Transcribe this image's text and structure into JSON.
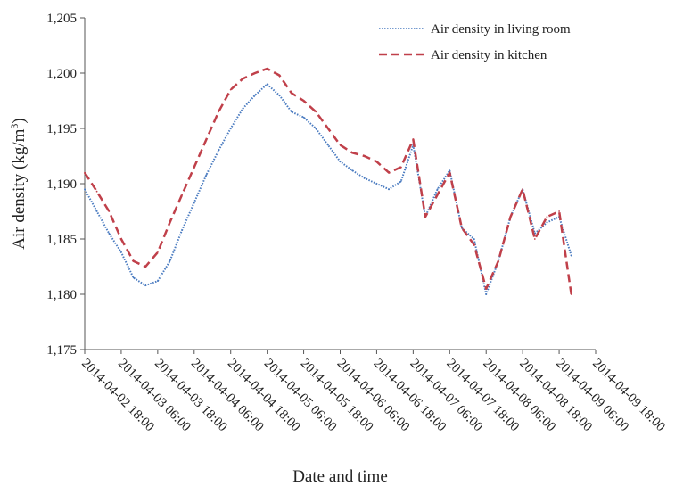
{
  "chart_data": {
    "type": "line",
    "xlabel": "Date and time",
    "ylabel": "Air density (kg/m",
    "ylabel_sup": "3",
    "ylabel_close": ")",
    "ylim": [
      1.175,
      1.205
    ],
    "yticks": [
      {
        "value": 1.175,
        "label": "1,175"
      },
      {
        "value": 1.18,
        "label": "1,180"
      },
      {
        "value": 1.185,
        "label": "1,185"
      },
      {
        "value": 1.19,
        "label": "1,190"
      },
      {
        "value": 1.195,
        "label": "1,195"
      },
      {
        "value": 1.2,
        "label": "1,200"
      },
      {
        "value": 1.205,
        "label": "1,205"
      }
    ],
    "xlim": [
      "2014-04-02 18:00",
      "2014-04-09 18:00"
    ],
    "xticks": [
      "2014-04-02 18:00",
      "2014-04-03 06:00",
      "2014-04-03 18:00",
      "2014-04-04 06:00",
      "2014-04-04 18:00",
      "2014-04-05 06:00",
      "2014-04-05 18:00",
      "2014-04-06 06:00",
      "2014-04-06 18:00",
      "2014-04-07 06:00",
      "2014-04-07 18:00",
      "2014-04-08 06:00",
      "2014-04-08 18:00",
      "2014-04-09 06:00",
      "2014-04-09 18:00"
    ],
    "grid": false,
    "legend_position": "top-right",
    "series": [
      {
        "name": "Air density in living room",
        "color": "#4a7bc0",
        "style": "dotted",
        "points": [
          [
            "2014-04-02 18:00",
            1.1895
          ],
          [
            "2014-04-02 22:00",
            1.1875
          ],
          [
            "2014-04-03 02:00",
            1.1855
          ],
          [
            "2014-04-03 06:00",
            1.1838
          ],
          [
            "2014-04-03 10:00",
            1.1815
          ],
          [
            "2014-04-03 14:00",
            1.1808
          ],
          [
            "2014-04-03 18:00",
            1.1812
          ],
          [
            "2014-04-03 22:00",
            1.183
          ],
          [
            "2014-04-04 02:00",
            1.1858
          ],
          [
            "2014-04-04 06:00",
            1.1883
          ],
          [
            "2014-04-04 10:00",
            1.1908
          ],
          [
            "2014-04-04 14:00",
            1.193
          ],
          [
            "2014-04-04 18:00",
            1.195
          ],
          [
            "2014-04-04 22:00",
            1.1968
          ],
          [
            "2014-04-05 02:00",
            1.198
          ],
          [
            "2014-04-05 06:00",
            1.199
          ],
          [
            "2014-04-05 10:00",
            1.198
          ],
          [
            "2014-04-05 14:00",
            1.1965
          ],
          [
            "2014-04-05 18:00",
            1.196
          ],
          [
            "2014-04-05 22:00",
            1.195
          ],
          [
            "2014-04-06 02:00",
            1.1935
          ],
          [
            "2014-04-06 06:00",
            1.192
          ],
          [
            "2014-04-06 10:00",
            1.1912
          ],
          [
            "2014-04-06 14:00",
            1.1905
          ],
          [
            "2014-04-06 18:00",
            1.19
          ],
          [
            "2014-04-06 22:00",
            1.1895
          ],
          [
            "2014-04-07 02:00",
            1.1902
          ],
          [
            "2014-04-07 06:00",
            1.1935
          ],
          [
            "2014-04-07 10:00",
            1.187
          ],
          [
            "2014-04-07 14:00",
            1.1895
          ],
          [
            "2014-04-07 18:00",
            1.1912
          ],
          [
            "2014-04-07 22:00",
            1.186
          ],
          [
            "2014-04-08 02:00",
            1.185
          ],
          [
            "2014-04-08 06:00",
            1.18
          ],
          [
            "2014-04-08 10:00",
            1.183
          ],
          [
            "2014-04-08 14:00",
            1.187
          ],
          [
            "2014-04-08 18:00",
            1.1895
          ],
          [
            "2014-04-08 22:00",
            1.1855
          ],
          [
            "2014-04-09 02:00",
            1.1865
          ],
          [
            "2014-04-09 06:00",
            1.187
          ],
          [
            "2014-04-09 10:00",
            1.1835
          ]
        ]
      },
      {
        "name": "Air density in kitchen",
        "color": "#c0404a",
        "style": "dashed",
        "points": [
          [
            "2014-04-02 18:00",
            1.191
          ],
          [
            "2014-04-02 22:00",
            1.1893
          ],
          [
            "2014-04-03 02:00",
            1.1875
          ],
          [
            "2014-04-03 06:00",
            1.185
          ],
          [
            "2014-04-03 10:00",
            1.183
          ],
          [
            "2014-04-03 14:00",
            1.1825
          ],
          [
            "2014-04-03 18:00",
            1.1838
          ],
          [
            "2014-04-03 22:00",
            1.1865
          ],
          [
            "2014-04-04 02:00",
            1.189
          ],
          [
            "2014-04-04 06:00",
            1.1915
          ],
          [
            "2014-04-04 10:00",
            1.194
          ],
          [
            "2014-04-04 14:00",
            1.1965
          ],
          [
            "2014-04-04 18:00",
            1.1985
          ],
          [
            "2014-04-04 22:00",
            1.1995
          ],
          [
            "2014-04-05 02:00",
            1.2
          ],
          [
            "2014-04-05 06:00",
            1.2004
          ],
          [
            "2014-04-05 10:00",
            1.1998
          ],
          [
            "2014-04-05 14:00",
            1.1982
          ],
          [
            "2014-04-05 18:00",
            1.1975
          ],
          [
            "2014-04-05 22:00",
            1.1965
          ],
          [
            "2014-04-06 02:00",
            1.195
          ],
          [
            "2014-04-06 06:00",
            1.1935
          ],
          [
            "2014-04-06 10:00",
            1.1928
          ],
          [
            "2014-04-06 14:00",
            1.1925
          ],
          [
            "2014-04-06 18:00",
            1.192
          ],
          [
            "2014-04-06 22:00",
            1.191
          ],
          [
            "2014-04-07 02:00",
            1.1915
          ],
          [
            "2014-04-07 06:00",
            1.194
          ],
          [
            "2014-04-07 10:00",
            1.187
          ],
          [
            "2014-04-07 14:00",
            1.189
          ],
          [
            "2014-04-07 18:00",
            1.191
          ],
          [
            "2014-04-07 22:00",
            1.186
          ],
          [
            "2014-04-08 02:00",
            1.1845
          ],
          [
            "2014-04-08 06:00",
            1.1805
          ],
          [
            "2014-04-08 10:00",
            1.183
          ],
          [
            "2014-04-08 14:00",
            1.187
          ],
          [
            "2014-04-08 18:00",
            1.1895
          ],
          [
            "2014-04-08 22:00",
            1.185
          ],
          [
            "2014-04-09 02:00",
            1.187
          ],
          [
            "2014-04-09 06:00",
            1.1875
          ],
          [
            "2014-04-09 10:00",
            1.18
          ]
        ]
      }
    ]
  }
}
